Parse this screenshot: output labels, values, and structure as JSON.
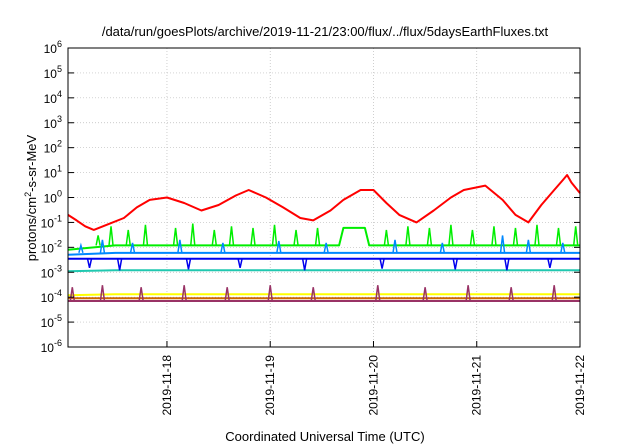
{
  "chart_data": {
    "type": "line",
    "title": "/data/run/goesPlots/archive/2019-11-21/23:00/flux/../flux/5daysEarthFluxes.txt",
    "xlabel": "Coordinated Universal Time (UTC)",
    "ylabel_main": "protons/cm",
    "ylabel_sup": "2",
    "ylabel_rest": "-s-sr-MeV",
    "x_range": [
      "2019-11-17T01:00",
      "2019-11-22T00:00"
    ],
    "x_ticks": [
      "2019-11-18",
      "2019-11-19",
      "2019-11-20",
      "2019-11-21",
      "2019-11-22"
    ],
    "y_scale": "log",
    "y_range": [
      1e-06,
      1000000.0
    ],
    "y_ticks": [
      {
        "base": "10",
        "exp": "6"
      },
      {
        "base": "10",
        "exp": "5"
      },
      {
        "base": "10",
        "exp": "4"
      },
      {
        "base": "10",
        "exp": "3"
      },
      {
        "base": "10",
        "exp": "2"
      },
      {
        "base": "10",
        "exp": "1"
      },
      {
        "base": "10",
        "exp": "0"
      },
      {
        "base": "10",
        "exp": "-1"
      },
      {
        "base": "10",
        "exp": "-2"
      },
      {
        "base": "10",
        "exp": "-3"
      },
      {
        "base": "10",
        "exp": "-4"
      },
      {
        "base": "10",
        "exp": "-5"
      },
      {
        "base": "10",
        "exp": "-6"
      }
    ],
    "grid": true,
    "series": [
      {
        "color": "#ff0000",
        "values": [
          [
            "2019-11-17T01:00",
            0.2
          ],
          [
            "2019-11-17T03:00",
            0.12
          ],
          [
            "2019-11-17T05:00",
            0.07
          ],
          [
            "2019-11-17T07:00",
            0.05
          ],
          [
            "2019-11-17T10:00",
            0.08
          ],
          [
            "2019-11-17T14:00",
            0.15
          ],
          [
            "2019-11-17T17:00",
            0.4
          ],
          [
            "2019-11-17T20:00",
            0.8
          ],
          [
            "2019-11-18T00:00",
            1.0
          ],
          [
            "2019-11-18T04:00",
            0.6
          ],
          [
            "2019-11-18T08:00",
            0.3
          ],
          [
            "2019-11-18T12:00",
            0.5
          ],
          [
            "2019-11-18T16:00",
            1.2
          ],
          [
            "2019-11-18T19:00",
            2.0
          ],
          [
            "2019-11-18T23:00",
            1.0
          ],
          [
            "2019-11-19T03:00",
            0.4
          ],
          [
            "2019-11-19T07:00",
            0.15
          ],
          [
            "2019-11-19T10:00",
            0.12
          ],
          [
            "2019-11-19T14:00",
            0.3
          ],
          [
            "2019-11-19T17:00",
            0.8
          ],
          [
            "2019-11-19T21:00",
            2.0
          ],
          [
            "2019-11-20T00:00",
            2.0
          ],
          [
            "2019-11-20T03:00",
            0.6
          ],
          [
            "2019-11-20T06:00",
            0.2
          ],
          [
            "2019-11-20T10:00",
            0.1
          ],
          [
            "2019-11-20T14:00",
            0.3
          ],
          [
            "2019-11-20T18:00",
            1.0
          ],
          [
            "2019-11-20T21:00",
            2.0
          ],
          [
            "2019-11-21T02:00",
            3.0
          ],
          [
            "2019-11-21T06:00",
            0.8
          ],
          [
            "2019-11-21T09:00",
            0.2
          ],
          [
            "2019-11-21T12:00",
            0.1
          ],
          [
            "2019-11-21T15:00",
            0.5
          ],
          [
            "2019-11-21T18:00",
            2.0
          ],
          [
            "2019-11-21T20:00",
            5.0
          ],
          [
            "2019-11-21T21:00",
            8.0
          ],
          [
            "2019-11-21T22:00",
            4.0
          ],
          [
            "2019-11-22T00:00",
            1.5
          ]
        ]
      },
      {
        "color": "#00ee00",
        "values": [
          [
            "2019-11-17T01:00",
            0.008
          ],
          [
            "2019-11-17T12:00",
            0.012
          ],
          [
            "2019-11-18T00:00",
            0.012
          ],
          [
            "2019-11-18T12:00",
            0.012
          ],
          [
            "2019-11-19T00:00",
            0.012
          ],
          [
            "2019-11-19T16:00",
            0.012
          ],
          [
            "2019-11-19T17:00",
            0.06
          ],
          [
            "2019-11-19T22:00",
            0.06
          ],
          [
            "2019-11-19T23:00",
            0.012
          ],
          [
            "2019-11-20T12:00",
            0.012
          ],
          [
            "2019-11-21T00:00",
            0.012
          ],
          [
            "2019-11-21T12:00",
            0.012
          ],
          [
            "2019-11-22T00:00",
            0.012
          ]
        ]
      },
      {
        "color": "#0088ff",
        "values": [
          [
            "2019-11-17T01:00",
            0.005
          ],
          [
            "2019-11-17T12:00",
            0.006
          ],
          [
            "2019-11-18T00:00",
            0.006
          ],
          [
            "2019-11-18T12:00",
            0.006
          ],
          [
            "2019-11-19T00:00",
            0.006
          ],
          [
            "2019-11-19T12:00",
            0.006
          ],
          [
            "2019-11-20T00:00",
            0.006
          ],
          [
            "2019-11-20T12:00",
            0.006
          ],
          [
            "2019-11-21T00:00",
            0.006
          ],
          [
            "2019-11-21T12:00",
            0.006
          ],
          [
            "2019-11-22T00:00",
            0.006
          ]
        ]
      },
      {
        "color": "#0000ee",
        "values": [
          [
            "2019-11-17T01:00",
            0.0035
          ],
          [
            "2019-11-17T12:00",
            0.0035
          ],
          [
            "2019-11-18T00:00",
            0.0035
          ],
          [
            "2019-11-18T12:00",
            0.0035
          ],
          [
            "2019-11-19T00:00",
            0.0035
          ],
          [
            "2019-11-19T12:00",
            0.0035
          ],
          [
            "2019-11-20T00:00",
            0.0035
          ],
          [
            "2019-11-20T12:00",
            0.0035
          ],
          [
            "2019-11-21T00:00",
            0.0035
          ],
          [
            "2019-11-21T12:00",
            0.0035
          ],
          [
            "2019-11-22T00:00",
            0.0035
          ]
        ]
      },
      {
        "color": "#20c8b0",
        "values": [
          [
            "2019-11-17T01:00",
            0.0011
          ],
          [
            "2019-11-17T12:00",
            0.0012
          ],
          [
            "2019-11-18T00:00",
            0.0012
          ],
          [
            "2019-11-18T12:00",
            0.0012
          ],
          [
            "2019-11-19T00:00",
            0.0012
          ],
          [
            "2019-11-19T12:00",
            0.0012
          ],
          [
            "2019-11-20T00:00",
            0.0012
          ],
          [
            "2019-11-20T12:00",
            0.0012
          ],
          [
            "2019-11-21T00:00",
            0.0012
          ],
          [
            "2019-11-21T12:00",
            0.0012
          ],
          [
            "2019-11-22T00:00",
            0.0012
          ]
        ]
      },
      {
        "color": "#ffff00",
        "values": [
          [
            "2019-11-17T01:00",
            0.00012
          ],
          [
            "2019-11-17T12:00",
            0.00013
          ],
          [
            "2019-11-18T00:00",
            0.00013
          ],
          [
            "2019-11-18T12:00",
            0.00013
          ],
          [
            "2019-11-19T00:00",
            0.00013
          ],
          [
            "2019-11-19T12:00",
            0.00013
          ],
          [
            "2019-11-20T00:00",
            0.00013
          ],
          [
            "2019-11-20T12:00",
            0.00013
          ],
          [
            "2019-11-21T00:00",
            0.00013
          ],
          [
            "2019-11-21T12:00",
            0.00013
          ],
          [
            "2019-11-22T00:00",
            0.00013
          ]
        ]
      },
      {
        "color": "#cc6600",
        "values": [
          [
            "2019-11-17T01:00",
            9e-05
          ],
          [
            "2019-11-17T12:00",
            9e-05
          ],
          [
            "2019-11-18T00:00",
            9e-05
          ],
          [
            "2019-11-18T12:00",
            9e-05
          ],
          [
            "2019-11-19T00:00",
            9e-05
          ],
          [
            "2019-11-19T12:00",
            9e-05
          ],
          [
            "2019-11-20T00:00",
            9e-05
          ],
          [
            "2019-11-20T12:00",
            9e-05
          ],
          [
            "2019-11-21T00:00",
            9e-05
          ],
          [
            "2019-11-21T12:00",
            9e-05
          ],
          [
            "2019-11-22T00:00",
            9e-05
          ]
        ]
      },
      {
        "color": "#993366",
        "values": [
          [
            "2019-11-17T01:00",
            7e-05
          ],
          [
            "2019-11-17T12:00",
            7e-05
          ],
          [
            "2019-11-18T00:00",
            7e-05
          ],
          [
            "2019-11-18T12:00",
            7e-05
          ],
          [
            "2019-11-19T00:00",
            7e-05
          ],
          [
            "2019-11-19T12:00",
            7e-05
          ],
          [
            "2019-11-20T00:00",
            7e-05
          ],
          [
            "2019-11-20T12:00",
            7e-05
          ],
          [
            "2019-11-21T00:00",
            7e-05
          ],
          [
            "2019-11-21T12:00",
            7e-05
          ],
          [
            "2019-11-22T00:00",
            7e-05
          ]
        ]
      }
    ],
    "spikes": [
      {
        "color": "#00ee00",
        "values": [
          [
            "2019-11-17T08:00",
            0.03
          ],
          [
            "2019-11-17T11:00",
            0.07
          ],
          [
            "2019-11-17T15:00",
            0.05
          ],
          [
            "2019-11-17T19:00",
            0.08
          ],
          [
            "2019-11-18T02:00",
            0.06
          ],
          [
            "2019-11-18T06:00",
            0.09
          ],
          [
            "2019-11-18T11:00",
            0.05
          ],
          [
            "2019-11-18T15:00",
            0.07
          ],
          [
            "2019-11-18T20:00",
            0.06
          ],
          [
            "2019-11-19T01:00",
            0.08
          ],
          [
            "2019-11-19T06:00",
            0.05
          ],
          [
            "2019-11-19T11:00",
            0.06
          ],
          [
            "2019-11-20T03:00",
            0.05
          ],
          [
            "2019-11-20T08:00",
            0.07
          ],
          [
            "2019-11-20T13:00",
            0.06
          ],
          [
            "2019-11-20T18:00",
            0.08
          ],
          [
            "2019-11-20T23:00",
            0.05
          ],
          [
            "2019-11-21T04:00",
            0.07
          ],
          [
            "2019-11-21T09:00",
            0.06
          ],
          [
            "2019-11-21T14:00",
            0.08
          ],
          [
            "2019-11-21T19:00",
            0.06
          ],
          [
            "2019-11-21T23:00",
            0.07
          ]
        ]
      },
      {
        "color": "#0088ff",
        "values": [
          [
            "2019-11-17T04:00",
            0.012
          ],
          [
            "2019-11-17T09:00",
            0.02
          ],
          [
            "2019-11-17T16:00",
            0.015
          ],
          [
            "2019-11-18T03:00",
            0.02
          ],
          [
            "2019-11-18T13:00",
            0.015
          ],
          [
            "2019-11-19T02:00",
            0.018
          ],
          [
            "2019-11-19T13:00",
            0.015
          ],
          [
            "2019-11-20T05:00",
            0.02
          ],
          [
            "2019-11-20T16:00",
            0.015
          ],
          [
            "2019-11-21T06:00",
            0.03
          ],
          [
            "2019-11-21T12:00",
            0.02
          ],
          [
            "2019-11-21T20:00",
            0.015
          ]
        ]
      },
      {
        "color": "#0000ee",
        "values": [
          [
            "2019-11-17T06:00",
            0.0015
          ],
          [
            "2019-11-17T13:00",
            0.0012
          ],
          [
            "2019-11-18T05:00",
            0.0013
          ],
          [
            "2019-11-18T17:00",
            0.0015
          ],
          [
            "2019-11-19T08:00",
            0.0012
          ],
          [
            "2019-11-20T02:00",
            0.0014
          ],
          [
            "2019-11-20T19:00",
            0.0013
          ],
          [
            "2019-11-21T07:00",
            0.0012
          ],
          [
            "2019-11-21T17:00",
            0.0015
          ]
        ]
      },
      {
        "color": "#993366",
        "values": [
          [
            "2019-11-17T02:00",
            0.00025
          ],
          [
            "2019-11-17T09:00",
            0.0003
          ],
          [
            "2019-11-17T18:00",
            0.00025
          ],
          [
            "2019-11-18T04:00",
            0.0003
          ],
          [
            "2019-11-18T14:00",
            0.00025
          ],
          [
            "2019-11-19T00:00",
            0.0003
          ],
          [
            "2019-11-19T10:00",
            0.00025
          ],
          [
            "2019-11-20T01:00",
            0.0003
          ],
          [
            "2019-11-20T12:00",
            0.00025
          ],
          [
            "2019-11-20T22:00",
            0.0003
          ],
          [
            "2019-11-21T08:00",
            0.00025
          ],
          [
            "2019-11-21T18:00",
            0.0003
          ]
        ]
      }
    ]
  }
}
